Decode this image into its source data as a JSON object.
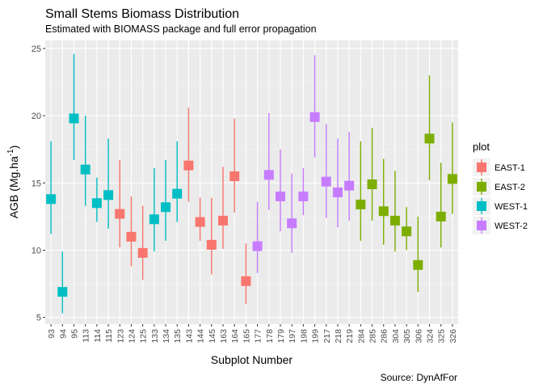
{
  "chart_data": {
    "type": "scatter",
    "title": "Small Stems Biomass Distribution",
    "subtitle": "Estimated with BIOMASS package and full error propagation",
    "xlabel": "Subplot Number",
    "ylabel": "AGB (Mg.ha",
    "ylabel_sup": "-1",
    "ylabel_close": ")",
    "caption": "Source: DynAfFor",
    "ylim": [
      4.5,
      25.6
    ],
    "yticks": [
      5,
      10,
      15,
      20,
      25
    ],
    "grid": true,
    "legend": {
      "title": "plot",
      "placement": "right",
      "entries": [
        {
          "name": "EAST-1",
          "color": "#F8766D"
        },
        {
          "name": "EAST-2",
          "color": "#7CAE00"
        },
        {
          "name": "WEST-1",
          "color": "#00BFC4"
        },
        {
          "name": "WEST-2",
          "color": "#C77CFF"
        }
      ]
    },
    "categories": [
      "93",
      "94",
      "95",
      "113",
      "114",
      "115",
      "123",
      "124",
      "125",
      "133",
      "134",
      "135",
      "143",
      "144",
      "145",
      "163",
      "164",
      "165",
      "177",
      "178",
      "179",
      "197",
      "198",
      "199",
      "217",
      "218",
      "219",
      "284",
      "285",
      "286",
      "304",
      "305",
      "306",
      "324",
      "325",
      "326"
    ],
    "points": [
      {
        "x": "93",
        "plot": "WEST-1",
        "y": 13.8,
        "lo": 11.2,
        "hi": 18.1
      },
      {
        "x": "94",
        "plot": "WEST-1",
        "y": 6.9,
        "lo": 5.3,
        "hi": 9.9
      },
      {
        "x": "95",
        "plot": "WEST-1",
        "y": 19.8,
        "lo": 16.7,
        "hi": 24.6
      },
      {
        "x": "113",
        "plot": "WEST-1",
        "y": 16.0,
        "lo": 13.3,
        "hi": 20.0
      },
      {
        "x": "114",
        "plot": "WEST-1",
        "y": 13.5,
        "lo": 12.1,
        "hi": 15.4
      },
      {
        "x": "115",
        "plot": "WEST-1",
        "y": 14.1,
        "lo": 11.6,
        "hi": 18.3
      },
      {
        "x": "123",
        "plot": "EAST-1",
        "y": 12.7,
        "lo": 10.2,
        "hi": 16.7
      },
      {
        "x": "124",
        "plot": "EAST-1",
        "y": 11.0,
        "lo": 8.8,
        "hi": 14.0
      },
      {
        "x": "125",
        "plot": "EAST-1",
        "y": 9.8,
        "lo": 7.8,
        "hi": 13.3
      },
      {
        "x": "133",
        "plot": "WEST-1",
        "y": 12.3,
        "lo": 9.9,
        "hi": 16.1
      },
      {
        "x": "134",
        "plot": "WEST-1",
        "y": 13.2,
        "lo": 10.7,
        "hi": 16.7
      },
      {
        "x": "135",
        "plot": "WEST-1",
        "y": 14.2,
        "lo": 12.1,
        "hi": 18.1
      },
      {
        "x": "143",
        "plot": "EAST-1",
        "y": 16.3,
        "lo": 13.6,
        "hi": 20.6
      },
      {
        "x": "144",
        "plot": "EAST-1",
        "y": 12.1,
        "lo": 10.7,
        "hi": 13.9
      },
      {
        "x": "145",
        "plot": "EAST-1",
        "y": 10.4,
        "lo": 8.2,
        "hi": 13.9
      },
      {
        "x": "163",
        "plot": "EAST-1",
        "y": 12.2,
        "lo": 10.1,
        "hi": 16.2
      },
      {
        "x": "164",
        "plot": "EAST-1",
        "y": 15.5,
        "lo": 12.8,
        "hi": 19.8
      },
      {
        "x": "165",
        "plot": "EAST-1",
        "y": 7.7,
        "lo": 6.0,
        "hi": 10.5
      },
      {
        "x": "177",
        "plot": "WEST-2",
        "y": 10.3,
        "lo": 8.3,
        "hi": 13.6
      },
      {
        "x": "178",
        "plot": "WEST-2",
        "y": 15.6,
        "lo": 13.0,
        "hi": 20.2
      },
      {
        "x": "179",
        "plot": "WEST-2",
        "y": 14.0,
        "lo": 11.4,
        "hi": 17.5
      },
      {
        "x": "197",
        "plot": "WEST-2",
        "y": 12.0,
        "lo": 9.8,
        "hi": 15.7
      },
      {
        "x": "198",
        "plot": "WEST-2",
        "y": 14.0,
        "lo": 12.6,
        "hi": 16.1
      },
      {
        "x": "199",
        "plot": "WEST-2",
        "y": 19.9,
        "lo": 16.9,
        "hi": 24.5
      },
      {
        "x": "217",
        "plot": "WEST-2",
        "y": 15.1,
        "lo": 12.4,
        "hi": 19.4
      },
      {
        "x": "218",
        "plot": "WEST-2",
        "y": 14.3,
        "lo": 11.7,
        "hi": 18.3
      },
      {
        "x": "219",
        "plot": "WEST-2",
        "y": 14.8,
        "lo": 12.2,
        "hi": 18.8
      },
      {
        "x": "284",
        "plot": "EAST-2",
        "y": 13.4,
        "lo": 10.7,
        "hi": 18.1
      },
      {
        "x": "285",
        "plot": "EAST-2",
        "y": 14.9,
        "lo": 12.2,
        "hi": 19.1
      },
      {
        "x": "286",
        "plot": "EAST-2",
        "y": 12.9,
        "lo": 10.4,
        "hi": 16.8
      },
      {
        "x": "304",
        "plot": "EAST-2",
        "y": 12.2,
        "lo": 9.9,
        "hi": 15.9
      },
      {
        "x": "305",
        "plot": "EAST-2",
        "y": 11.4,
        "lo": 10.0,
        "hi": 13.2
      },
      {
        "x": "306",
        "plot": "EAST-2",
        "y": 8.9,
        "lo": 6.9,
        "hi": 12.5
      },
      {
        "x": "324",
        "plot": "EAST-2",
        "y": 18.3,
        "lo": 15.2,
        "hi": 23.0
      },
      {
        "x": "325",
        "plot": "EAST-2",
        "y": 12.5,
        "lo": 10.2,
        "hi": 16.5
      },
      {
        "x": "326",
        "plot": "EAST-2",
        "y": 15.3,
        "lo": 12.7,
        "hi": 19.5
      }
    ]
  }
}
